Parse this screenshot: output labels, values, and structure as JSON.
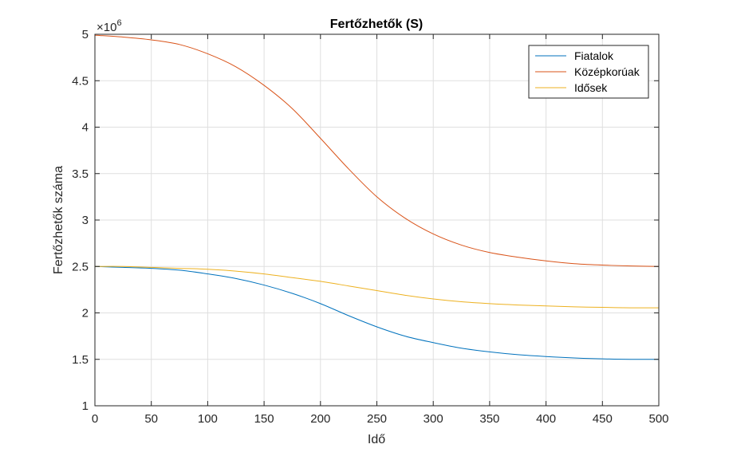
{
  "chart_data": {
    "type": "line",
    "title": "Fertőzhetők (S)",
    "xlabel": "Idő",
    "ylabel": "Fertőzhetők száma",
    "y_exponent_base": "×10",
    "y_exponent_power": "6",
    "xlim": [
      0,
      500
    ],
    "ylim": [
      1,
      5
    ],
    "x_ticks": [
      "0",
      "50",
      "100",
      "150",
      "200",
      "250",
      "300",
      "350",
      "400",
      "450",
      "500"
    ],
    "y_ticks": [
      "1",
      "1.5",
      "2",
      "2.5",
      "3",
      "3.5",
      "4",
      "4.5",
      "5"
    ],
    "grid": true,
    "legend_position": "top-right",
    "x": [
      0,
      25,
      50,
      75,
      100,
      125,
      150,
      175,
      200,
      225,
      250,
      275,
      300,
      325,
      350,
      375,
      400,
      425,
      450,
      475,
      500
    ],
    "series": [
      {
        "name": "Fiatalok",
        "color": "#0072BD",
        "values": [
          2.5,
          2.49,
          2.48,
          2.46,
          2.42,
          2.37,
          2.3,
          2.21,
          2.1,
          1.97,
          1.85,
          1.75,
          1.68,
          1.62,
          1.58,
          1.55,
          1.53,
          1.515,
          1.505,
          1.5,
          1.5
        ]
      },
      {
        "name": "Középkorúak",
        "color": "#D95319",
        "values": [
          4.99,
          4.97,
          4.94,
          4.89,
          4.79,
          4.65,
          4.45,
          4.2,
          3.88,
          3.55,
          3.25,
          3.02,
          2.85,
          2.73,
          2.65,
          2.6,
          2.56,
          2.53,
          2.515,
          2.505,
          2.5
        ]
      },
      {
        "name": "Idősek",
        "color": "#EDB120",
        "values": [
          2.5,
          2.5,
          2.49,
          2.48,
          2.47,
          2.45,
          2.42,
          2.38,
          2.34,
          2.29,
          2.24,
          2.19,
          2.15,
          2.12,
          2.1,
          2.085,
          2.075,
          2.065,
          2.06,
          2.055,
          2.055
        ]
      }
    ]
  }
}
